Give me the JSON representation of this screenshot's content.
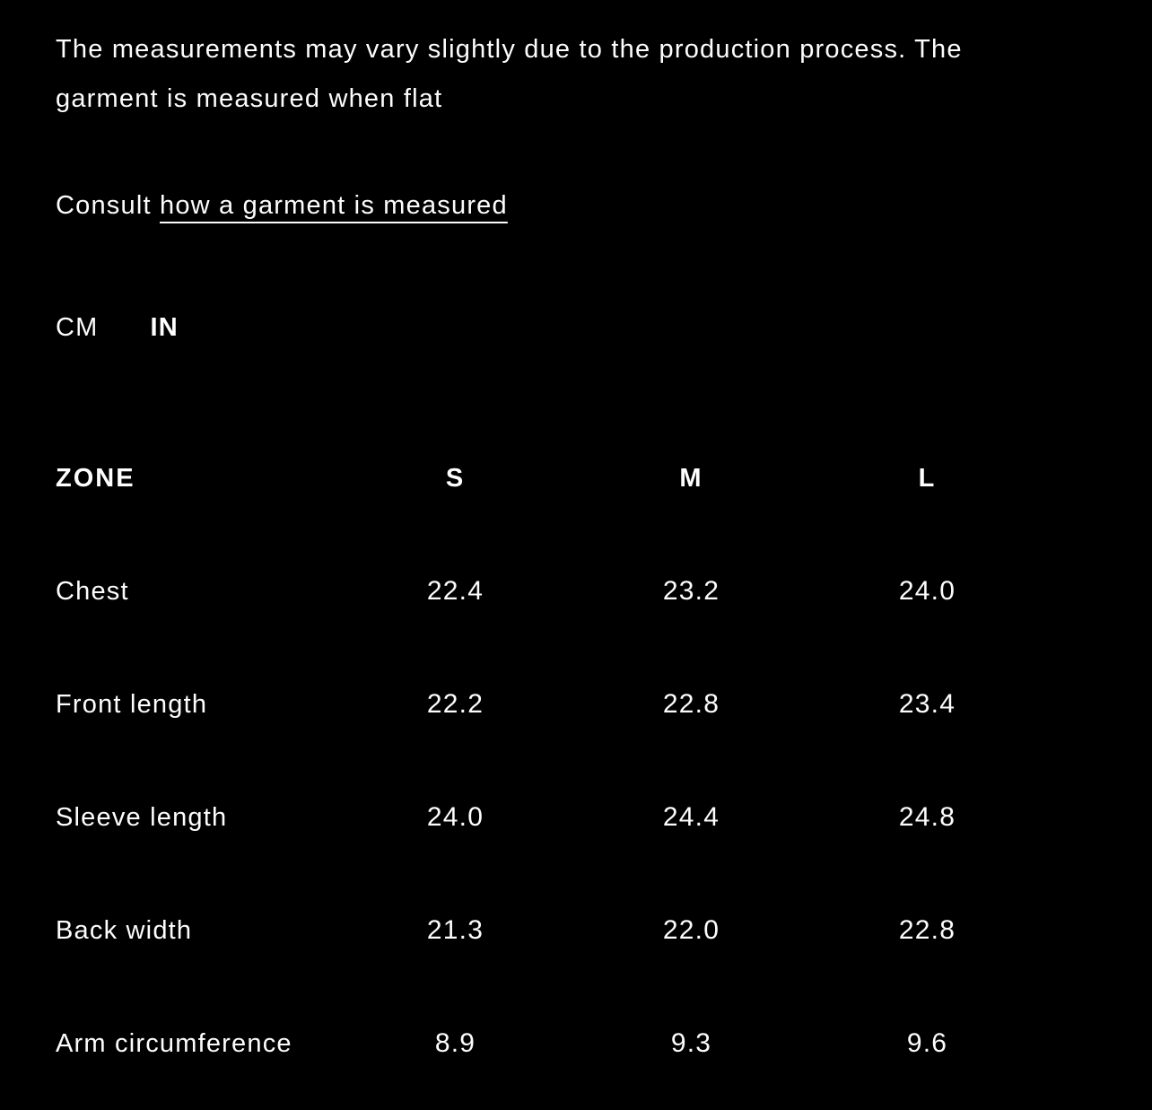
{
  "note": "The measurements may vary slightly due to the production process. The garment is measured when flat",
  "consult": {
    "prefix": "Consult ",
    "link_label": "how a garment is measured"
  },
  "units": {
    "cm_label": "CM",
    "in_label": "IN",
    "selected": "IN"
  },
  "table": {
    "headers": [
      "ZONE",
      "S",
      "M",
      "L"
    ],
    "rows": [
      {
        "label": "Chest",
        "values": [
          "22.4",
          "23.2",
          "24.0"
        ]
      },
      {
        "label": "Front length",
        "values": [
          "22.2",
          "22.8",
          "23.4"
        ]
      },
      {
        "label": "Sleeve length",
        "values": [
          "24.0",
          "24.4",
          "24.8"
        ]
      },
      {
        "label": "Back width",
        "values": [
          "21.3",
          "22.0",
          "22.8"
        ]
      },
      {
        "label": "Arm circumference",
        "values": [
          "8.9",
          "9.3",
          "9.6"
        ]
      }
    ]
  },
  "colors": {
    "background": "#000000",
    "text": "#fdfdfd",
    "selected_text": "#ffffff"
  }
}
